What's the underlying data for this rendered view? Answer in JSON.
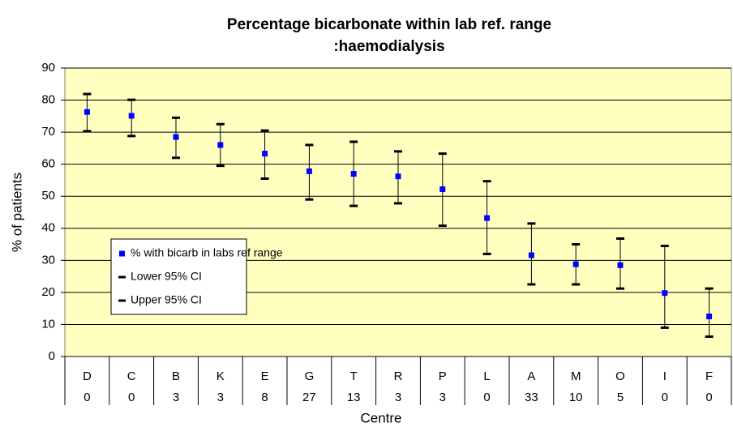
{
  "chart_data": {
    "type": "errorbar",
    "title": [
      "Percentage bicarbonate within lab ref. range",
      ":haemodialysis"
    ],
    "x_label": "Centre",
    "y_label": "% of patients",
    "categories": [
      "D",
      "C",
      "B",
      "K",
      "E",
      "G",
      "T",
      "R",
      "P",
      "L",
      "A",
      "M",
      "O",
      "I",
      "F"
    ],
    "category_counts": [
      0,
      0,
      3,
      3,
      8,
      27,
      13,
      3,
      3,
      0,
      33,
      10,
      5,
      0,
      0
    ],
    "series": [
      {
        "name": "% with bicarb in labs ref range",
        "color": "#0000ff",
        "values": [
          76.3,
          75.1,
          68.5,
          66,
          63.3,
          57.8,
          57,
          56.2,
          52.2,
          43.2,
          31.6,
          28.8,
          28.5,
          19.8,
          12.5
        ]
      },
      {
        "name": "Lower 95% CI",
        "color": "#000000",
        "values": [
          70.3,
          68.8,
          62,
          59.5,
          55.5,
          49,
          47,
          47.8,
          40.8,
          32,
          22.5,
          22.5,
          21.2,
          9,
          6.2
        ]
      },
      {
        "name": "Upper 95% CI",
        "color": "#000000",
        "values": [
          81.9,
          80.1,
          74.5,
          72.5,
          70.5,
          66,
          67,
          64,
          63.3,
          54.7,
          41.5,
          35,
          36.8,
          34.5,
          21.2
        ]
      }
    ],
    "ylim": [
      0,
      90
    ],
    "yticks": [
      0,
      10,
      20,
      30,
      40,
      50,
      60,
      70,
      80,
      90
    ],
    "grid": true,
    "plot_background": "#ffffc0",
    "legend": "left"
  }
}
